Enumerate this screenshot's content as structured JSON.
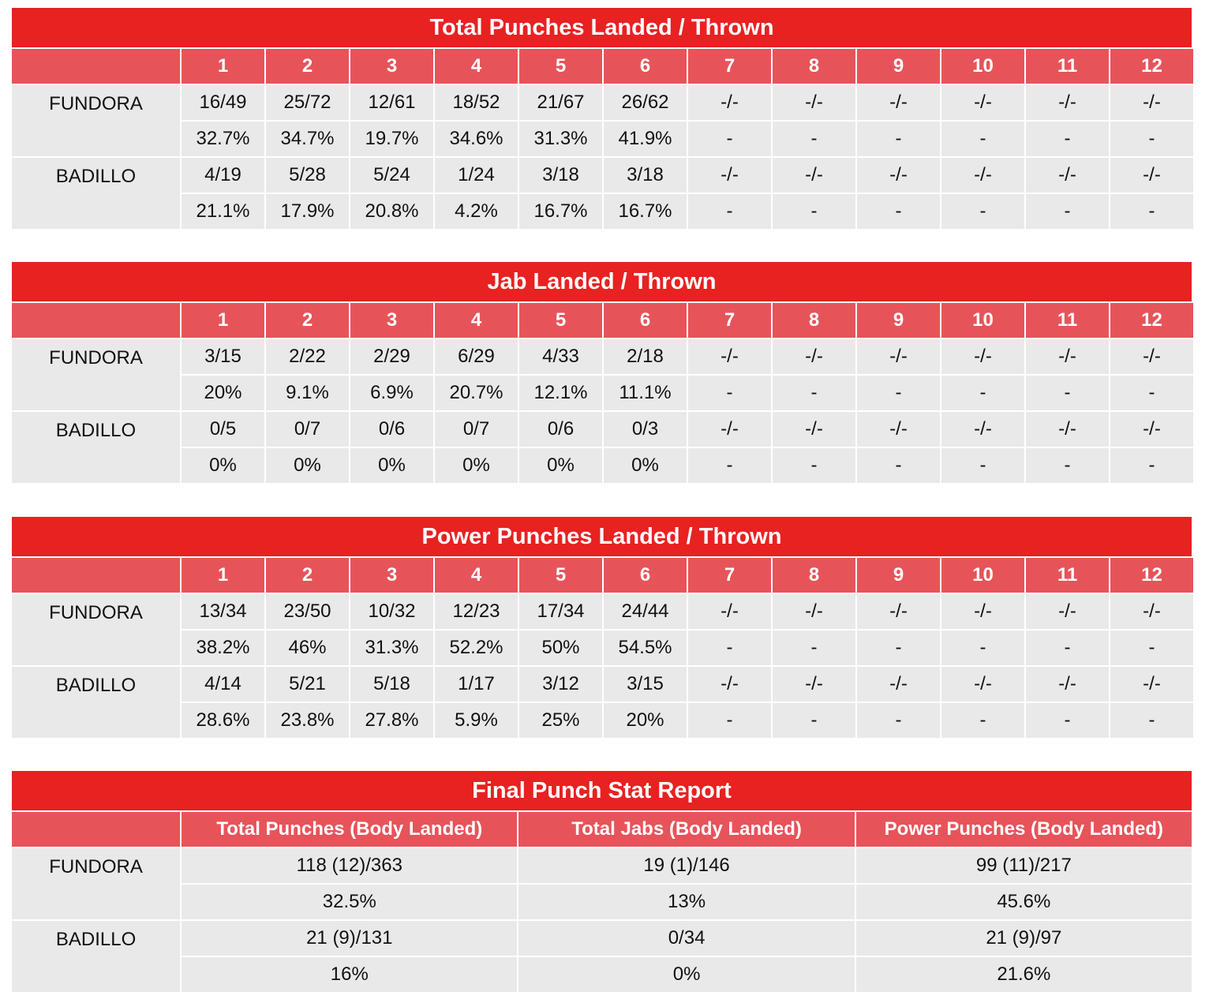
{
  "rounds": [
    "1",
    "2",
    "3",
    "4",
    "5",
    "6",
    "7",
    "8",
    "9",
    "10",
    "11",
    "12"
  ],
  "tables": [
    {
      "title": "Total Punches Landed / Thrown",
      "fighters": [
        {
          "name": "FUNDORA",
          "counts": [
            "16/49",
            "25/72",
            "12/61",
            "18/52",
            "21/67",
            "26/62",
            "-/-",
            "-/-",
            "-/-",
            "-/-",
            "-/-",
            "-/-"
          ],
          "pcts": [
            "32.7%",
            "34.7%",
            "19.7%",
            "34.6%",
            "31.3%",
            "41.9%",
            "-",
            "-",
            "-",
            "-",
            "-",
            "-"
          ]
        },
        {
          "name": "BADILLO",
          "counts": [
            "4/19",
            "5/28",
            "5/24",
            "1/24",
            "3/18",
            "3/18",
            "-/-",
            "-/-",
            "-/-",
            "-/-",
            "-/-",
            "-/-"
          ],
          "pcts": [
            "21.1%",
            "17.9%",
            "20.8%",
            "4.2%",
            "16.7%",
            "16.7%",
            "-",
            "-",
            "-",
            "-",
            "-",
            "-"
          ]
        }
      ]
    },
    {
      "title": "Jab Landed / Thrown",
      "fighters": [
        {
          "name": "FUNDORA",
          "counts": [
            "3/15",
            "2/22",
            "2/29",
            "6/29",
            "4/33",
            "2/18",
            "-/-",
            "-/-",
            "-/-",
            "-/-",
            "-/-",
            "-/-"
          ],
          "pcts": [
            "20%",
            "9.1%",
            "6.9%",
            "20.7%",
            "12.1%",
            "11.1%",
            "-",
            "-",
            "-",
            "-",
            "-",
            "-"
          ]
        },
        {
          "name": "BADILLO",
          "counts": [
            "0/5",
            "0/7",
            "0/6",
            "0/7",
            "0/6",
            "0/3",
            "-/-",
            "-/-",
            "-/-",
            "-/-",
            "-/-",
            "-/-"
          ],
          "pcts": [
            "0%",
            "0%",
            "0%",
            "0%",
            "0%",
            "0%",
            "-",
            "-",
            "-",
            "-",
            "-",
            "-"
          ]
        }
      ]
    },
    {
      "title": "Power Punches Landed / Thrown",
      "fighters": [
        {
          "name": "FUNDORA",
          "counts": [
            "13/34",
            "23/50",
            "10/32",
            "12/23",
            "17/34",
            "24/44",
            "-/-",
            "-/-",
            "-/-",
            "-/-",
            "-/-",
            "-/-"
          ],
          "pcts": [
            "38.2%",
            "46%",
            "31.3%",
            "52.2%",
            "50%",
            "54.5%",
            "-",
            "-",
            "-",
            "-",
            "-",
            "-"
          ]
        },
        {
          "name": "BADILLO",
          "counts": [
            "4/14",
            "5/21",
            "5/18",
            "1/17",
            "3/12",
            "3/15",
            "-/-",
            "-/-",
            "-/-",
            "-/-",
            "-/-",
            "-/-"
          ],
          "pcts": [
            "28.6%",
            "23.8%",
            "27.8%",
            "5.9%",
            "25%",
            "20%",
            "-",
            "-",
            "-",
            "-",
            "-",
            "-"
          ]
        }
      ]
    }
  ],
  "final": {
    "title": "Final Punch Stat Report",
    "columns": [
      "Total Punches (Body Landed)",
      "Total Jabs (Body Landed)",
      "Power Punches (Body Landed)"
    ],
    "fighters": [
      {
        "name": "FUNDORA",
        "counts": [
          "118 (12)/363",
          "19 (1)/146",
          "99 (11)/217"
        ],
        "pcts": [
          "32.5%",
          "13%",
          "45.6%"
        ]
      },
      {
        "name": "BADILLO",
        "counts": [
          "21 (9)/131",
          "0/34",
          "21 (9)/97"
        ],
        "pcts": [
          "16%",
          "0%",
          "21.6%"
        ]
      }
    ]
  },
  "colors": {
    "title_bg": "#e82121",
    "header_bg": "#e6545a",
    "cell_bg": "#e9e9e9"
  }
}
